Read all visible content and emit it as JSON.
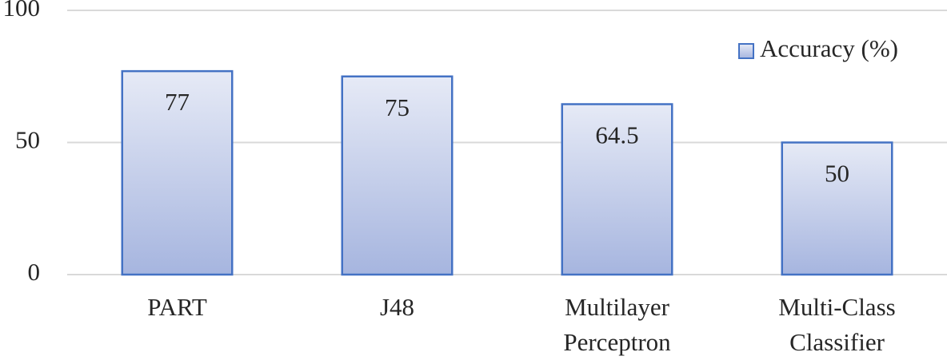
{
  "chart_data": {
    "type": "bar",
    "categories": [
      "PART",
      "J48",
      "Multilayer Perceptron",
      "Multi-Class Classifier"
    ],
    "series": [
      {
        "name": "Accuracy (%)",
        "color": "#4472c4",
        "values": [
          77,
          75,
          64.5,
          50
        ]
      }
    ],
    "ylim": [
      0,
      100
    ],
    "yticks": [
      0,
      50,
      100
    ],
    "grid": true,
    "legend": "top-right"
  }
}
